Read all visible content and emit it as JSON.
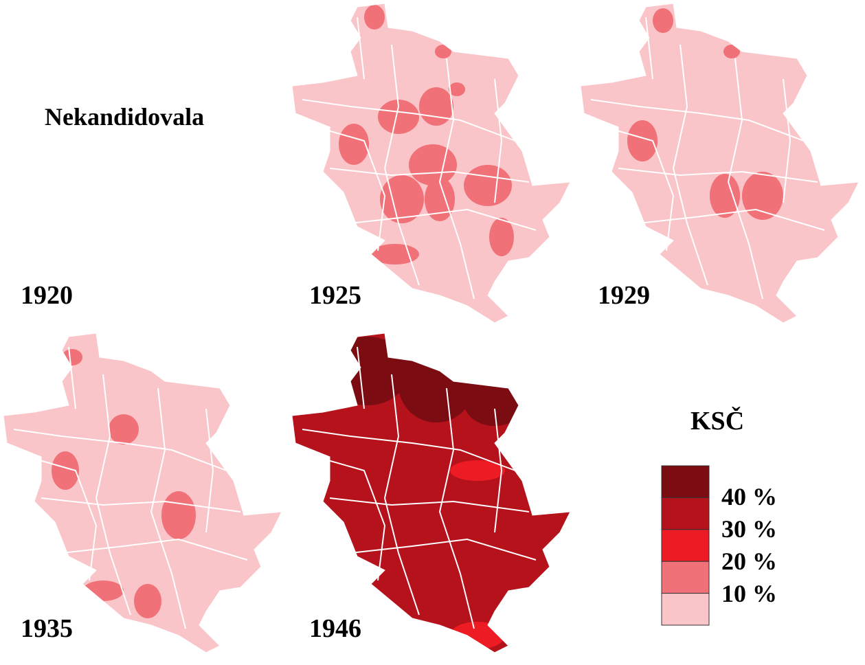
{
  "maps": [
    {
      "label": "1920",
      "note": "Nekandidovala"
    },
    {
      "label": "1925"
    },
    {
      "label": "1929"
    },
    {
      "label": "1935"
    },
    {
      "label": "1946"
    }
  ],
  "legend": {
    "title": "KSČ",
    "colors": [
      "#7a0c12",
      "#b5121b",
      "#ed1c24",
      "#f07178",
      "#f9c5c9"
    ],
    "labels": [
      "40 %",
      "30 %",
      "20 %",
      "10 %"
    ]
  }
}
